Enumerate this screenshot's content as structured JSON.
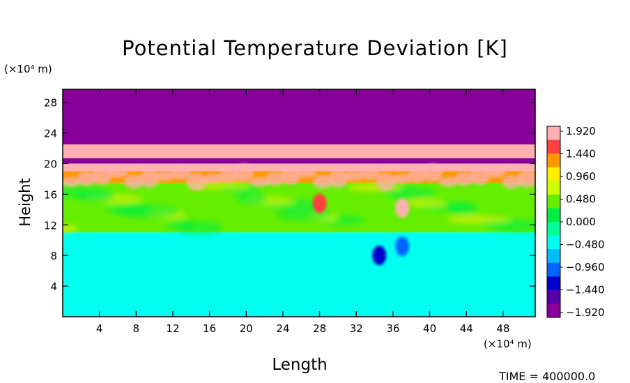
{
  "chart_data": {
    "type": "heatmap",
    "title": "Potential Temperature Deviation [K]",
    "xlabel": "Length",
    "ylabel": "Height",
    "x_units": "(×10⁴ m)",
    "y_units": "(×10⁴ m)",
    "xlim": [
      0,
      51.5
    ],
    "ylim": [
      0,
      29.7
    ],
    "x_ticks": [
      "4",
      "8",
      "12",
      "16",
      "20",
      "24",
      "28",
      "32",
      "36",
      "40",
      "44",
      "48"
    ],
    "y_ticks": [
      "4",
      "8",
      "12",
      "16",
      "20",
      "24",
      "28"
    ],
    "colorbar": {
      "levels": [
        "1.920",
        "1.440",
        "0.960",
        "0.480",
        "0.000",
        "−0.480",
        "−0.960",
        "−1.440",
        "−1.920"
      ],
      "min": -1.92,
      "max": 1.92,
      "colors": [
        "#ffb0b0",
        "#ff4040",
        "#ff9900",
        "#ffee00",
        "#ccff00",
        "#66ee00",
        "#00ee44",
        "#00ff99",
        "#00ffee",
        "#00bbff",
        "#0066ff",
        "#0000cc",
        "#5500aa",
        "#880099"
      ]
    },
    "layers": [
      {
        "y_range": [
          22.5,
          29.7
        ],
        "value": -1.92
      },
      {
        "y_range": [
          20.7,
          22.5
        ],
        "value": 1.92
      },
      {
        "y_range": [
          20.0,
          20.7
        ],
        "value": -1.92
      },
      {
        "y_range": [
          19.0,
          20.0
        ],
        "value": 1.92
      },
      {
        "y_range": [
          17.5,
          19.0
        ],
        "value": 1.2
      },
      {
        "y_range": [
          11.0,
          17.5
        ],
        "value": 0.4
      },
      {
        "y_range": [
          0,
          11.0
        ],
        "value": -0.3
      }
    ],
    "features": [
      {
        "x": 37,
        "y": 14.2,
        "value": 1.9
      },
      {
        "x": 28,
        "y": 14.8,
        "value": 1.5
      },
      {
        "x": 34.5,
        "y": 8.0,
        "value": -1.2
      },
      {
        "x": 37,
        "y": 9.2,
        "value": -0.9
      }
    ],
    "annotations": [
      "TIME = 400000.0"
    ]
  }
}
